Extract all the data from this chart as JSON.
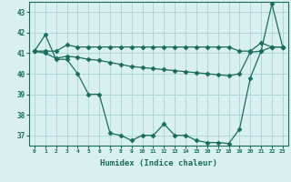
{
  "xlabel": "Humidex (Indice chaleur)",
  "ylabel": "",
  "x": [
    0,
    1,
    2,
    3,
    4,
    5,
    6,
    7,
    8,
    9,
    10,
    11,
    12,
    13,
    14,
    15,
    16,
    17,
    18,
    19,
    20,
    21,
    22,
    23
  ],
  "line1": [
    41.1,
    41.1,
    41.1,
    41.4,
    41.3,
    41.3,
    41.3,
    41.3,
    41.3,
    41.3,
    41.3,
    41.3,
    41.3,
    41.3,
    41.3,
    41.3,
    41.3,
    41.3,
    41.3,
    41.1,
    41.1,
    41.5,
    41.3,
    41.3
  ],
  "line2": [
    41.1,
    41.0,
    40.75,
    40.85,
    40.8,
    40.7,
    40.65,
    40.55,
    40.45,
    40.35,
    40.3,
    40.25,
    40.2,
    40.15,
    40.1,
    40.05,
    40.0,
    39.95,
    39.9,
    40.0,
    41.05,
    41.1,
    41.3,
    41.3
  ],
  "line3": [
    41.1,
    41.9,
    40.7,
    40.7,
    40.0,
    39.0,
    39.0,
    37.1,
    37.0,
    36.75,
    37.0,
    37.0,
    37.55,
    37.0,
    37.0,
    36.75,
    36.65,
    36.65,
    36.6,
    37.3,
    39.8,
    41.1,
    43.4,
    41.3
  ],
  "line_color": "#1a6b5a",
  "bg_color": "#d8f0f0",
  "grid_color": "#b0d8d8",
  "ylim": [
    36.5,
    43.5
  ],
  "yticks": [
    37,
    38,
    39,
    40,
    41,
    42,
    43
  ],
  "xticks": [
    0,
    1,
    2,
    3,
    4,
    5,
    6,
    7,
    8,
    9,
    10,
    11,
    12,
    13,
    14,
    15,
    16,
    17,
    18,
    19,
    20,
    21,
    22,
    23
  ],
  "marker": "D",
  "markersize": 2.5,
  "linewidth": 0.9
}
